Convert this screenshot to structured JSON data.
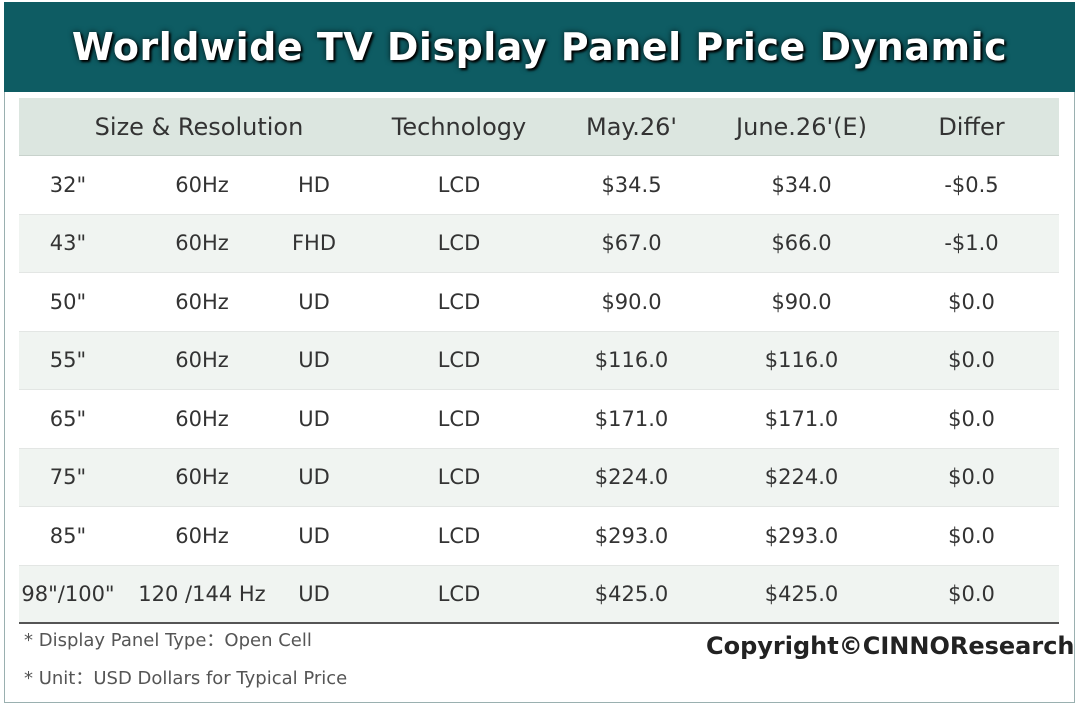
{
  "chart_data": {
    "type": "table",
    "title": "Worldwide TV Display Panel Price Dynamic",
    "headers": {
      "size_resolution": "Size & Resolution",
      "technology": "Technology",
      "may": "May.26'",
      "june": "June.26'(E)",
      "differ": "Differ"
    },
    "rows": [
      {
        "size": "32\"",
        "hz": "60Hz",
        "res": "HD",
        "tech": "LCD",
        "may": "$34.5",
        "june": "$34.0",
        "differ": "-$0.5"
      },
      {
        "size": "43\"",
        "hz": "60Hz",
        "res": "FHD",
        "tech": "LCD",
        "may": "$67.0",
        "june": "$66.0",
        "differ": "-$1.0"
      },
      {
        "size": "50\"",
        "hz": "60Hz",
        "res": "UD",
        "tech": "LCD",
        "may": "$90.0",
        "june": "$90.0",
        "differ": "$0.0"
      },
      {
        "size": "55\"",
        "hz": "60Hz",
        "res": "UD",
        "tech": "LCD",
        "may": "$116.0",
        "june": "$116.0",
        "differ": "$0.0"
      },
      {
        "size": "65\"",
        "hz": "60Hz",
        "res": "UD",
        "tech": "LCD",
        "may": "$171.0",
        "june": "$171.0",
        "differ": "$0.0"
      },
      {
        "size": "75\"",
        "hz": "60Hz",
        "res": "UD",
        "tech": "LCD",
        "may": "$224.0",
        "june": "$224.0",
        "differ": "$0.0"
      },
      {
        "size": "85\"",
        "hz": "60Hz",
        "res": "UD",
        "tech": "LCD",
        "may": "$293.0",
        "june": "$293.0",
        "differ": "$0.0"
      },
      {
        "size": "98\"/100\"",
        "hz": "120 /144 Hz",
        "res": "UD",
        "tech": "LCD",
        "may": "$425.0",
        "june": "$425.0",
        "differ": "$0.0"
      }
    ],
    "notes": [
      "* Display Panel Type：Open Cell",
      "* Unit：USD Dollars for Typical Price"
    ],
    "copyright": "Copyright©CINNOResearch"
  },
  "colors": {
    "banner": "#0e5c63",
    "header_row": "#dce6e0",
    "stripe": "#f0f4f1"
  }
}
